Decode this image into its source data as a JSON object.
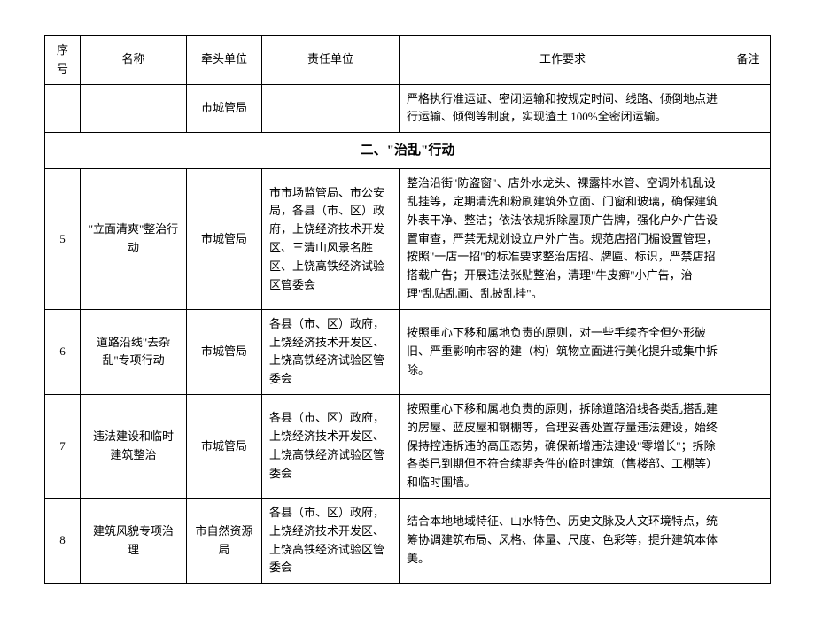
{
  "columns": {
    "seq": "序号",
    "name": "名称",
    "lead": "牵头单位",
    "resp": "责任单位",
    "req": "工作要求",
    "note": "备注"
  },
  "top_row": {
    "seq": "",
    "name": "",
    "lead": "市城管局",
    "resp": "",
    "req": "严格执行准运证、密闭运输和按规定时间、线路、倾倒地点进行运输、倾倒等制度，实现渣土 100%全密闭运输。",
    "note": ""
  },
  "section_title": "二、\"治乱\"行动",
  "rows": [
    {
      "seq": "5",
      "name": "\"立面清爽\"整治行动",
      "lead": "市城管局",
      "resp": "市市场监管局、市公安局，各县（市、区）政府，上饶经济技术开发区、三清山风景名胜区、上饶高铁经济试验区管委会",
      "req": "整治沿街\"防盗窗\"、店外水龙头、裸露排水管、空调外机乱设乱挂等，定期清洗和粉刷建筑外立面、门窗和玻璃，确保建筑外表干净、整洁；依法依规拆除屋顶广告牌，强化户外广告设置审查，严禁无规划设立户外广告。规范店招门楣设置管理，按照\"一店一招\"的标准要求整治店招、牌匾、标识，严禁店招搭载广告；开展违法张贴整治，清理\"牛皮癣\"小广告，治理\"乱贴乱画、乱披乱挂\"。",
      "note": ""
    },
    {
      "seq": "6",
      "name": "道路沿线\"去杂乱\"专项行动",
      "lead": "市城管局",
      "resp": "各县（市、区）政府，上饶经济技术开发区、上饶高铁经济试验区管委会",
      "req": "按照重心下移和属地负责的原则，对一些手续齐全但外形破旧、严重影响市容的建（构）筑物立面进行美化提升或集中拆除。",
      "note": ""
    },
    {
      "seq": "7",
      "name": "违法建设和临时建筑整治",
      "lead": "市城管局",
      "resp": "各县（市、区）政府，上饶经济技术开发区、上饶高铁经济试验区管委会",
      "req": "按照重心下移和属地负责的原则，拆除道路沿线各类乱搭乱建的房屋、蓝皮屋和钢棚等，合理妥善处置存量违法建设，始终保持控违拆违的高压态势，确保新增违法建设\"零增长\"；拆除各类已到期但不符合续期条件的临时建筑（售楼部、工棚等）和临时围墙。",
      "note": ""
    },
    {
      "seq": "8",
      "name": "建筑风貌专项治理",
      "lead": "市自然资源局",
      "resp": "各县（市、区）政府，上饶经济技术开发区、上饶高铁经济试验区管委会",
      "req": "结合本地地域特征、山水特色、历史文脉及人文环境特点，统筹协调建筑布局、风格、体量、尺度、色彩等，提升建筑本体美。",
      "note": ""
    }
  ]
}
